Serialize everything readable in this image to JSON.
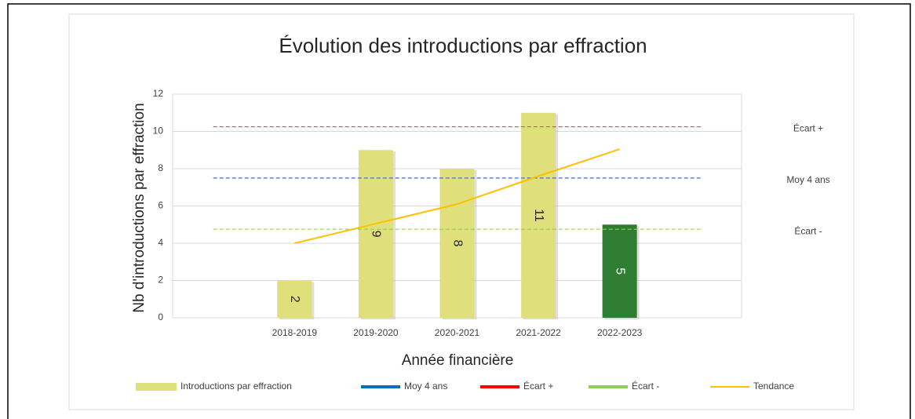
{
  "chart_data": {
    "type": "bar",
    "title": "Évolution des introductions par effraction",
    "x_label": "Année financière",
    "y_label": "Nb d'introductions par effraction",
    "categories": [
      null,
      "2018-2019",
      "2019-2020",
      "2020-2021",
      "2021-2022",
      "2022-2023",
      null
    ],
    "series": [
      {
        "name": "Introductions par effraction",
        "type": "bar",
        "color": "#dfe07c",
        "colors": [
          null,
          "#dfe07c",
          "#dfe07c",
          "#dfe07c",
          "#dfe07c",
          "#2e7d32",
          null
        ],
        "values": [
          null,
          2,
          9,
          8,
          11,
          5,
          null
        ]
      },
      {
        "name": "Moy 4 ans",
        "type": "dashed",
        "color": "#4472c4",
        "legend_color": "#0070c0",
        "values": [
          7.5,
          7.5,
          7.5,
          7.5,
          7.5,
          7.5,
          7.5
        ]
      },
      {
        "name": "Écart +",
        "type": "dashed",
        "color": "#e84c4c",
        "legend_color": "#ff0000",
        "values": [
          10.25,
          10.25,
          10.25,
          10.25,
          10.25,
          10.25,
          10.25
        ]
      },
      {
        "name": "Écart -",
        "type": "dashed",
        "color": "#92d050",
        "legend_color": "#92d050",
        "values": [
          4.75,
          4.75,
          4.75,
          4.75,
          4.75,
          4.75,
          4.75
        ]
      },
      {
        "name": "Tendance",
        "type": "line",
        "color": "#ffc000",
        "values": [
          null,
          4.0,
          5.05,
          6.1,
          7.6,
          9.05,
          null
        ]
      }
    ],
    "ylim": [
      0,
      12
    ],
    "yticks": [
      0,
      2,
      4,
      6,
      8,
      10,
      12
    ],
    "grid": true
  }
}
